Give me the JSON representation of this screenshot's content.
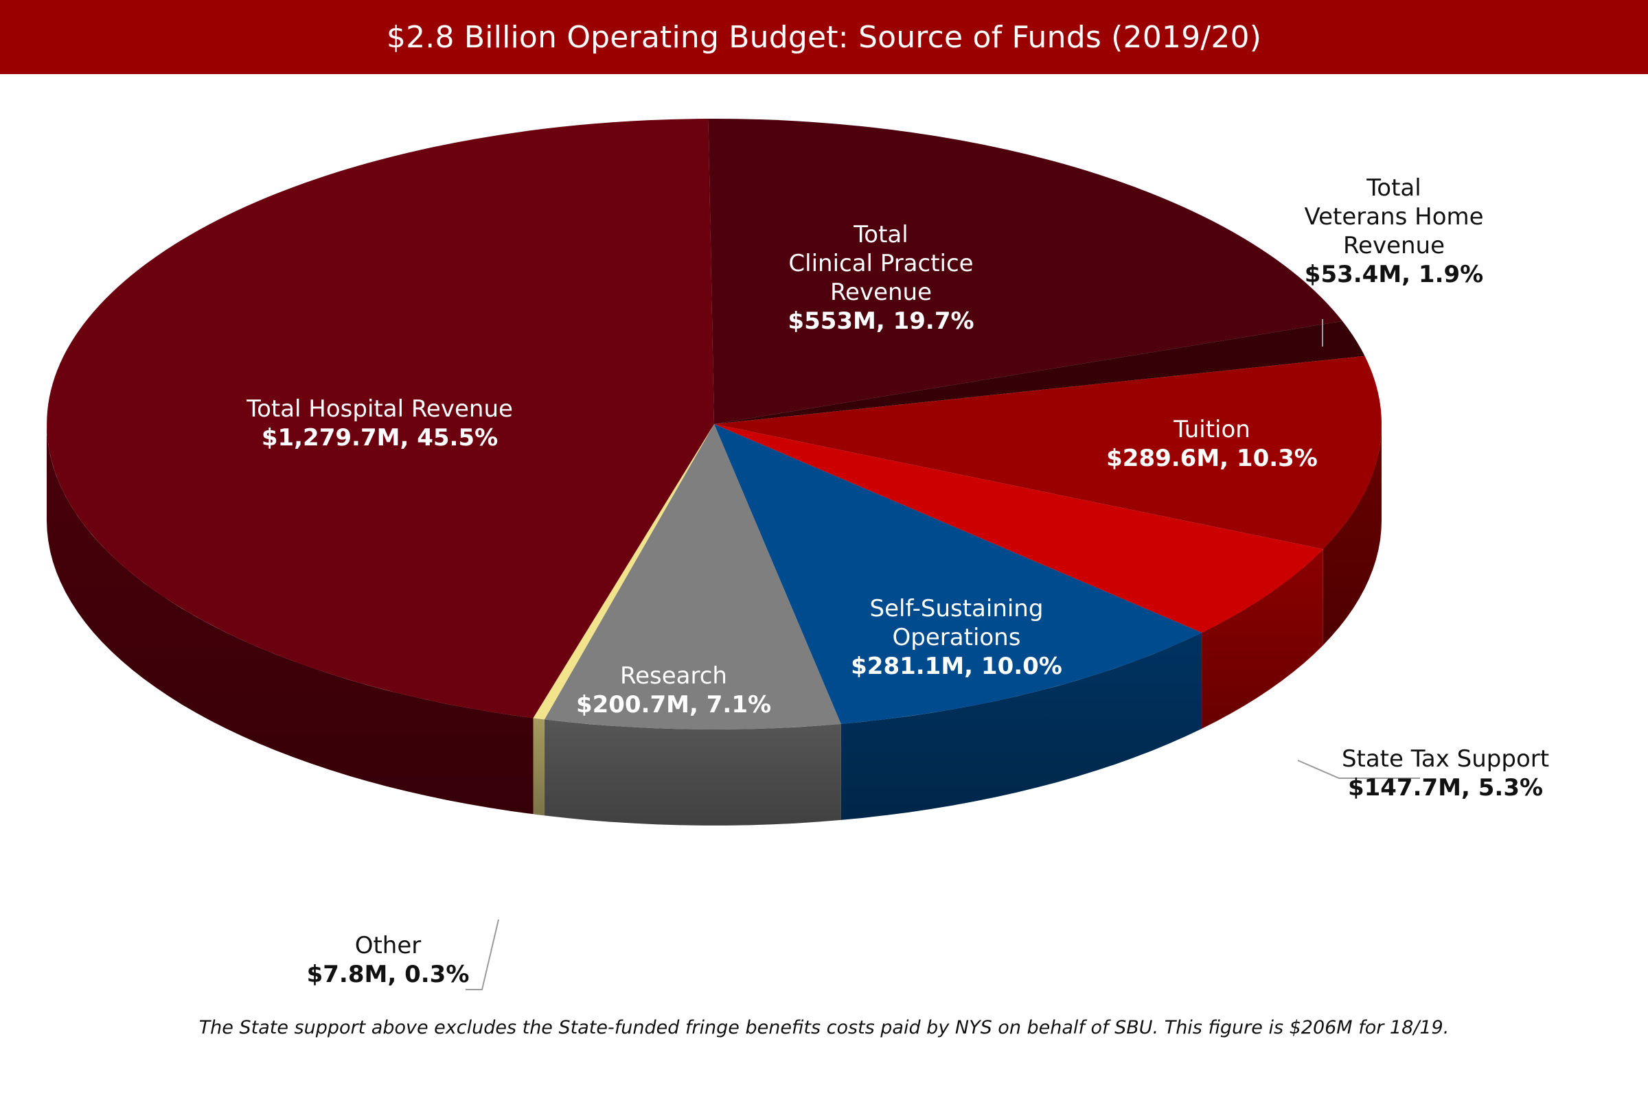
{
  "chart_data": {
    "type": "pie",
    "title": "$2.8 Billion Operating Budget: Source of Funds (2019/20)",
    "slices": [
      {
        "name_lines": [
          "Total",
          "Clinical Practice",
          "Revenue"
        ],
        "value_label": "$553M, 19.7%",
        "value": 553,
        "percent": 19.7,
        "color": "#4e000c"
      },
      {
        "name_lines": [
          "Total",
          "Veterans Home",
          "Revenue"
        ],
        "value_label": "$53.4M, 1.9%",
        "value": 53.4,
        "percent": 1.9,
        "color": "#350006"
      },
      {
        "name_lines": [
          "Tuition"
        ],
        "value_label": "$289.6M, 10.3%",
        "value": 289.6,
        "percent": 10.3,
        "color": "#9a0000"
      },
      {
        "name_lines": [
          "State Tax Support"
        ],
        "value_label": "$147.7M, 5.3%",
        "value": 147.7,
        "percent": 5.3,
        "color": "#cc0000"
      },
      {
        "name_lines": [
          "Self-Sustaining",
          "Operations"
        ],
        "value_label": "$281.1M, 10.0%",
        "value": 281.1,
        "percent": 10.0,
        "color": "#004b8e"
      },
      {
        "name_lines": [
          "Research"
        ],
        "value_label": "$200.7M, 7.1%",
        "value": 200.7,
        "percent": 7.1,
        "color": "#7f7f7f"
      },
      {
        "name_lines": [
          "Other"
        ],
        "value_label": "$7.8M, 0.3%",
        "value": 7.8,
        "percent": 0.3,
        "color": "#f2e48c"
      },
      {
        "name_lines": [
          "Total Hospital Revenue"
        ],
        "value_label": "$1,279.7M, 45.5%",
        "value": 1279.7,
        "percent": 45.5,
        "color": "#6b000f"
      }
    ],
    "footnote": "The State support above excludes the State-funded fringe benefits costs paid by NYS on behalf of SBU. This figure is $206M for 18/19."
  }
}
